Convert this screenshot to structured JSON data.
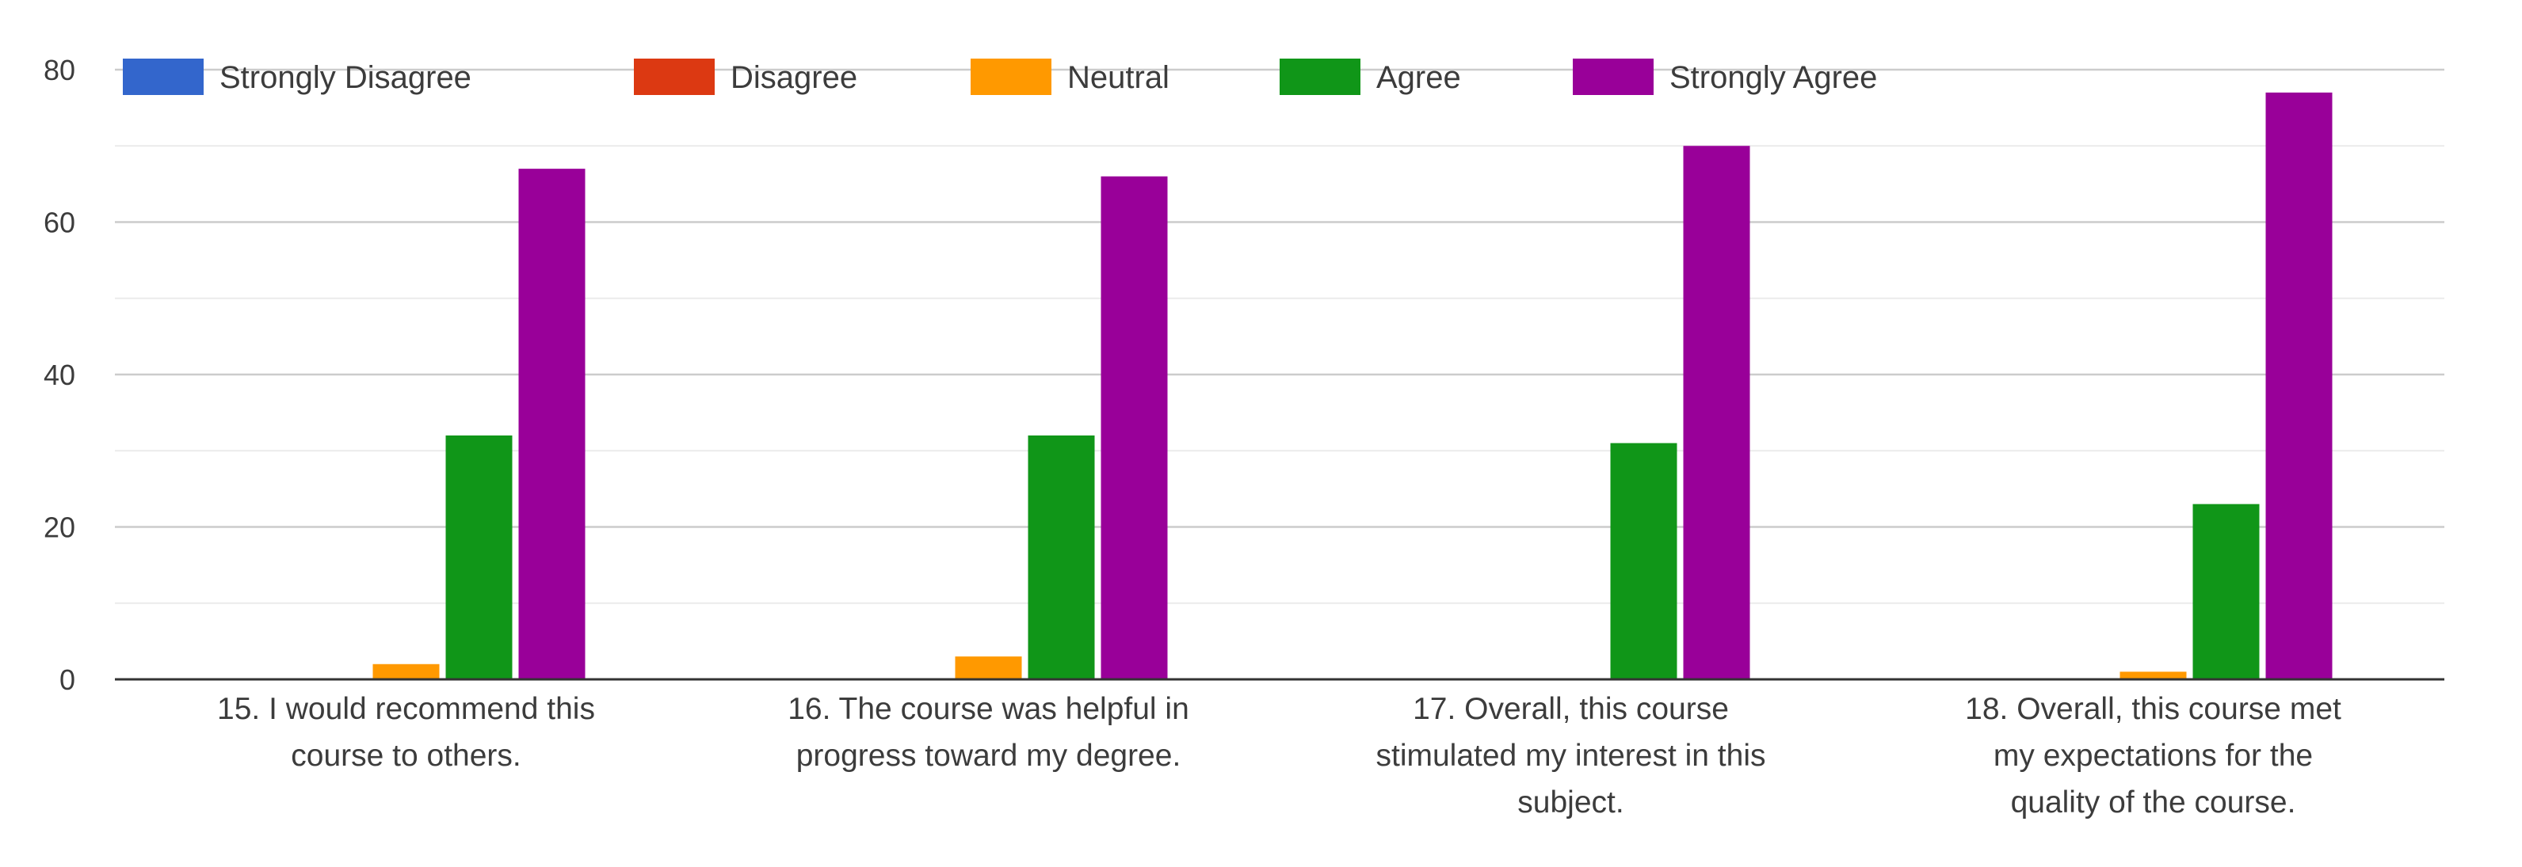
{
  "chart_data": {
    "type": "bar",
    "title": "",
    "xlabel": "",
    "ylabel": "",
    "ylim": [
      0,
      80
    ],
    "yticks": [
      "0",
      "20",
      "40",
      "60",
      "80"
    ],
    "grid": true,
    "legend_position": "top",
    "categories": [
      [
        "15. I would recommend this",
        "course to others."
      ],
      [
        "16. The course was helpful in",
        "progress toward my degree."
      ],
      [
        "17. Overall, this course",
        "stimulated my interest in this",
        "subject."
      ],
      [
        "18. Overall, this course met",
        "my expectations for the",
        "quality of the course."
      ]
    ],
    "series": [
      {
        "name": "Strongly Disagree",
        "color": "#3366cc",
        "values": [
          0,
          0,
          0,
          0
        ]
      },
      {
        "name": "Disagree",
        "color": "#dc3912",
        "values": [
          0,
          0,
          0,
          0
        ]
      },
      {
        "name": "Neutral",
        "color": "#ff9900",
        "values": [
          2,
          3,
          0,
          1
        ]
      },
      {
        "name": "Agree",
        "color": "#109618",
        "values": [
          32,
          32,
          31,
          23
        ]
      },
      {
        "name": "Strongly Agree",
        "color": "#990099",
        "values": [
          67,
          66,
          70,
          77
        ]
      }
    ]
  }
}
